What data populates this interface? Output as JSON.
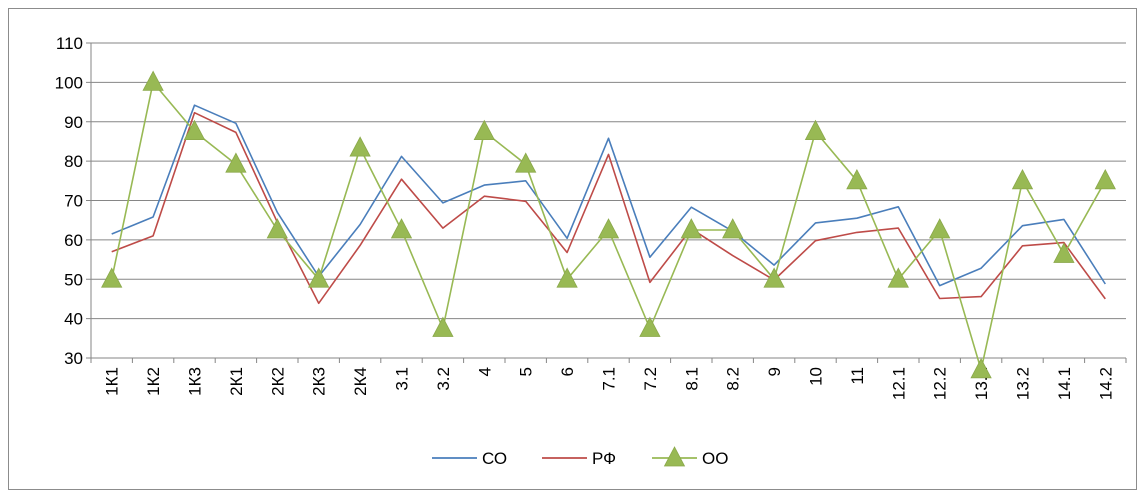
{
  "chart_data": {
    "type": "line",
    "title": "",
    "xlabel": "",
    "ylabel": "",
    "ylim": [
      30,
      110
    ],
    "yticks": [
      30,
      40,
      50,
      60,
      70,
      80,
      90,
      100,
      110
    ],
    "grid": true,
    "legend_position": "bottom",
    "categories": [
      "1К1",
      "1К2",
      "1К3",
      "2К1",
      "2К2",
      "2К3",
      "2К4",
      "3.1",
      "3.2",
      "4",
      "5",
      "6",
      "7.1",
      "7.2",
      "8.1",
      "8.2",
      "9",
      "10",
      "11",
      "12.1",
      "12.2",
      "13.1",
      "13.2",
      "14.1",
      "14.2"
    ],
    "series": [
      {
        "name": "СО",
        "color": "#4a7ebb",
        "marker": "none",
        "values": [
          61.5,
          65.8,
          94.2,
          89.6,
          67.0,
          50.7,
          63.9,
          81.2,
          69.4,
          73.9,
          75.0,
          60.4,
          85.8,
          55.6,
          68.3,
          62.2,
          53.6,
          64.3,
          65.5,
          68.4,
          48.4,
          52.8,
          63.6,
          65.2,
          48.8
        ]
      },
      {
        "name": "РФ",
        "color": "#be4b48",
        "marker": "none",
        "values": [
          57.0,
          61.0,
          92.3,
          87.3,
          64.5,
          43.9,
          58.6,
          75.4,
          63.0,
          71.1,
          69.8,
          56.8,
          81.7,
          49.2,
          62.8,
          56.0,
          49.8,
          59.8,
          61.9,
          63.0,
          45.1,
          45.6,
          58.5,
          59.3,
          45.0
        ]
      },
      {
        "name": "ОО",
        "color": "#98b954",
        "marker": "triangle",
        "values": [
          50.0,
          100.0,
          87.5,
          79.2,
          62.5,
          50.0,
          83.3,
          62.5,
          37.5,
          87.5,
          79.2,
          50.0,
          62.5,
          37.5,
          62.5,
          62.5,
          50.0,
          87.5,
          75.0,
          50.0,
          62.5,
          27.0,
          75.0,
          56.3,
          75.0
        ]
      }
    ]
  }
}
